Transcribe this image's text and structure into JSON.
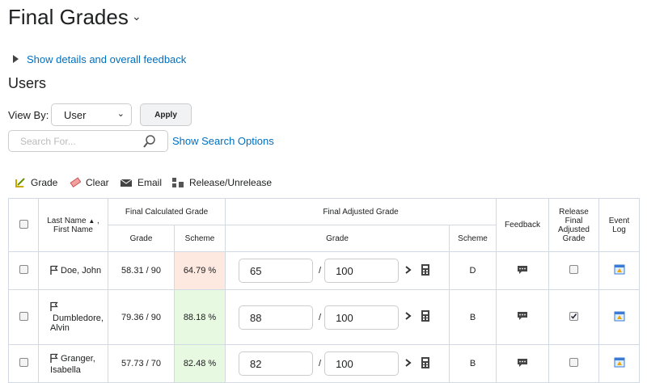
{
  "header": {
    "title": "Final Grades"
  },
  "details_link": "Show details and overall feedback",
  "section_title": "Users",
  "view_by": {
    "label": "View By:",
    "value": "User",
    "apply": "Apply"
  },
  "search": {
    "placeholder": "Search For...",
    "options_link": "Show Search Options"
  },
  "toolbar": [
    "Grade",
    "Clear",
    "Email",
    "Release/Unrelease"
  ],
  "table": {
    "headers": {
      "name_last": "Last Name",
      "name_sep": ",",
      "name_first": "First Name",
      "calculated": "Final Calculated Grade",
      "calc_grade": "Grade",
      "calc_scheme": "Scheme",
      "adjusted": "Final Adjusted Grade",
      "adj_grade": "Grade",
      "adj_scheme": "Scheme",
      "feedback": "Feedback",
      "release": "Release Final Adjusted Grade",
      "event_log": "Event Log"
    },
    "rows": [
      {
        "name": "Doe, John",
        "calc_grade": "58.31 / 90",
        "calc_scheme": "64.79 %",
        "scheme_bg": "#fde9e0",
        "adj_grade": "65",
        "adj_sep": "/",
        "adj_max": "100",
        "adj_scheme": "D",
        "released": false
      },
      {
        "name": "Dumbledore, Alvin",
        "calc_grade": "79.36 / 90",
        "calc_scheme": "88.18 %",
        "scheme_bg": "#e8f9e2",
        "adj_grade": "88",
        "adj_sep": "/",
        "adj_max": "100",
        "adj_scheme": "B",
        "released": true
      },
      {
        "name": "Granger, Isabella",
        "calc_grade": "57.73 / 70",
        "calc_scheme": "82.48 %",
        "scheme_bg": "#e8f9e2",
        "adj_grade": "82",
        "adj_sep": "/",
        "adj_max": "100",
        "adj_scheme": "B",
        "released": false
      }
    ]
  }
}
